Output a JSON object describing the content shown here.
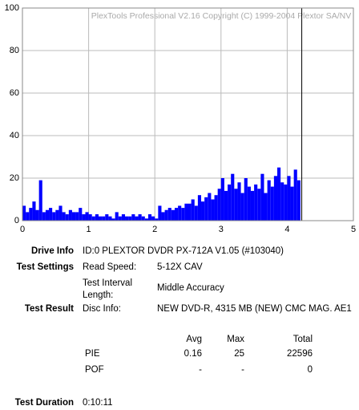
{
  "chart_data": {
    "type": "histogram",
    "title": "PlexTools Professional V2.16 Copyright (C) 1999-2004 Plextor SA/NV",
    "bins": [
      0,
      0.05,
      0.1,
      0.15,
      0.2,
      0.25,
      0.3,
      0.35,
      0.4,
      0.45,
      0.5,
      0.55,
      0.6,
      0.65,
      0.7,
      0.75,
      0.8,
      0.85,
      0.9,
      0.95,
      1,
      1.05,
      1.1,
      1.15,
      1.2,
      1.25,
      1.3,
      1.35,
      1.4,
      1.45,
      1.5,
      1.55,
      1.6,
      1.65,
      1.7,
      1.75,
      1.8,
      1.85,
      1.9,
      1.95,
      2,
      2.05,
      2.1,
      2.15,
      2.2,
      2.25,
      2.3,
      2.35,
      2.4,
      2.45,
      2.5,
      2.55,
      2.6,
      2.65,
      2.7,
      2.75,
      2.8,
      2.85,
      2.9,
      2.95,
      3,
      3.05,
      3.1,
      3.15,
      3.2,
      3.25,
      3.3,
      3.35,
      3.4,
      3.45,
      3.5,
      3.55,
      3.6,
      3.65,
      3.7,
      3.75,
      3.8,
      3.85,
      3.9,
      3.95,
      4,
      4.05,
      4.1,
      4.15,
      4.2
    ],
    "values": [
      7,
      4,
      6,
      9,
      5,
      19,
      4,
      5,
      6,
      4,
      5,
      7,
      4,
      3,
      5,
      4,
      4,
      6,
      3,
      4,
      3,
      2,
      3,
      2,
      2,
      3,
      2,
      1,
      4,
      2,
      3,
      2,
      2,
      3,
      2,
      3,
      2,
      1,
      3,
      2,
      1,
      7,
      4,
      5,
      6,
      5,
      6,
      7,
      6,
      8,
      8,
      10,
      7,
      12,
      9,
      11,
      13,
      10,
      12,
      15,
      20,
      14,
      17,
      22,
      15,
      18,
      13,
      20,
      16,
      14,
      17,
      15,
      22,
      13,
      19,
      16,
      21,
      25,
      18,
      17,
      21,
      16,
      24,
      19
    ],
    "color": "#0000ff",
    "marker_x": 4.22,
    "xlim": [
      0,
      5
    ],
    "xticks": [
      0,
      1,
      2,
      3,
      4,
      5
    ],
    "ylim": [
      0,
      100
    ],
    "yticks": [
      0,
      20,
      40,
      60,
      80,
      100
    ],
    "grid": true
  },
  "info": {
    "drive_info": {
      "label": "Drive Info",
      "value": "ID:0 PLEXTOR DVDR PX-712A V1.05 (#103040)"
    },
    "test_settings": {
      "label": "Test Settings",
      "read_speed": {
        "label": "Read Speed:",
        "value": "5-12X CAV"
      },
      "interval": {
        "label": "Test Interval Length:",
        "value": "Middle Accuracy"
      }
    },
    "test_result": {
      "label": "Test Result",
      "disc_info": {
        "label": "Disc Info:",
        "value": "NEW DVD-R, 4315 MB (NEW) CMC MAG. AE1"
      }
    },
    "table": {
      "header": [
        "Avg",
        "Max",
        "Total"
      ],
      "rows": [
        [
          "PIE",
          "0.16",
          "25",
          "22596"
        ],
        [
          "POF",
          "-",
          "-",
          "0"
        ]
      ]
    },
    "test_duration": {
      "label": "Test Duration",
      "value": "0:10:11"
    }
  }
}
